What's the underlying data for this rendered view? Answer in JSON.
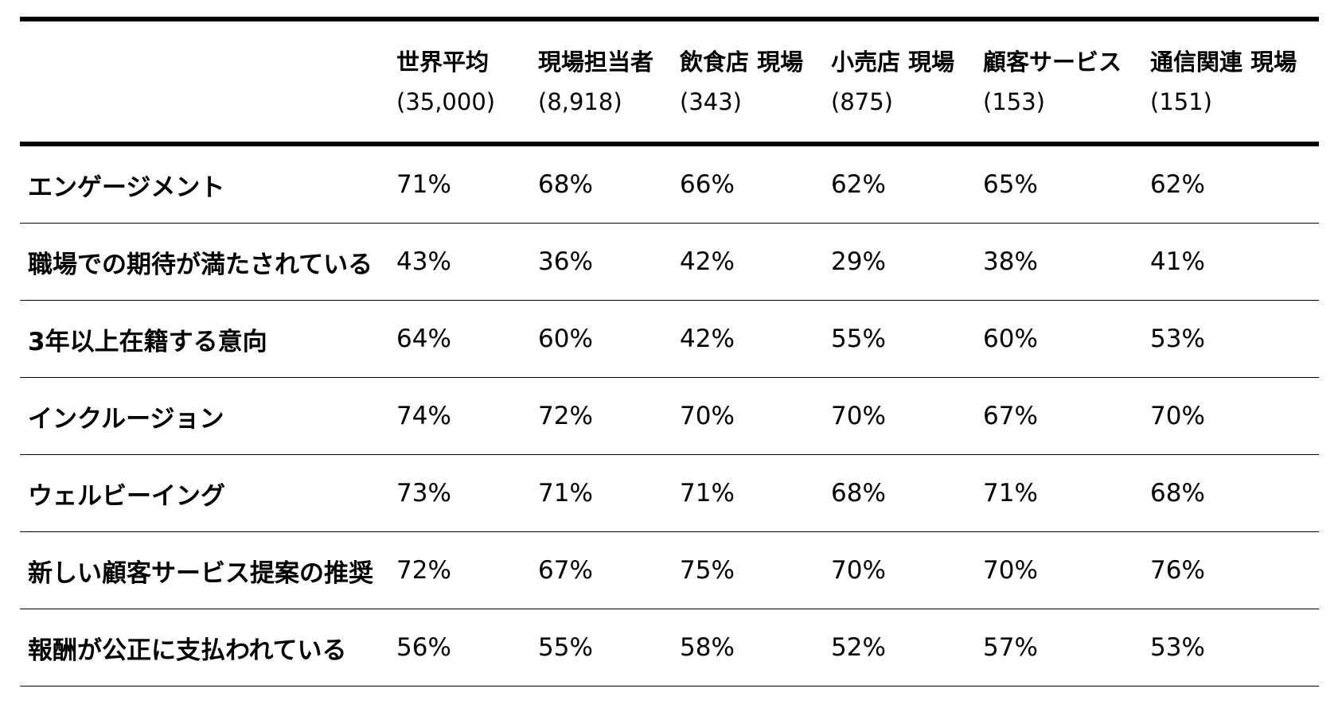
{
  "table": {
    "columns": [
      {
        "title": "",
        "sub": ""
      },
      {
        "title": "世界平均",
        "sub": "(35,000)"
      },
      {
        "title": "現場担当者",
        "sub": "(8,918)"
      },
      {
        "title": "飲食店 現場",
        "sub": "(343)"
      },
      {
        "title": "小売店 現場",
        "sub": "(875)"
      },
      {
        "title": "顧客サービス",
        "sub": "(153)"
      },
      {
        "title": "通信関連 現場",
        "sub": "(151)"
      }
    ],
    "rows": [
      {
        "label": "エンゲージメント",
        "values": [
          "71%",
          "68%",
          "66%",
          "62%",
          "65%",
          "62%"
        ]
      },
      {
        "label": "職場での期待が満たされている",
        "values": [
          "43%",
          "36%",
          "42%",
          "29%",
          "38%",
          "41%"
        ]
      },
      {
        "label": "3年以上在籍する意向",
        "values": [
          "64%",
          "60%",
          "42%",
          "55%",
          "60%",
          "53%"
        ]
      },
      {
        "label": "インクルージョン",
        "values": [
          "74%",
          "72%",
          "70%",
          "70%",
          "67%",
          "70%"
        ]
      },
      {
        "label": "ウェルビーイング",
        "values": [
          "73%",
          "71%",
          "71%",
          "68%",
          "71%",
          "68%"
        ]
      },
      {
        "label": "新しい顧客サービス提案の推奨",
        "values": [
          "72%",
          "67%",
          "75%",
          "70%",
          "70%",
          "76%"
        ]
      },
      {
        "label": "報酬が公正に支払われている",
        "values": [
          "56%",
          "55%",
          "58%",
          "52%",
          "57%",
          "53%"
        ]
      }
    ]
  }
}
